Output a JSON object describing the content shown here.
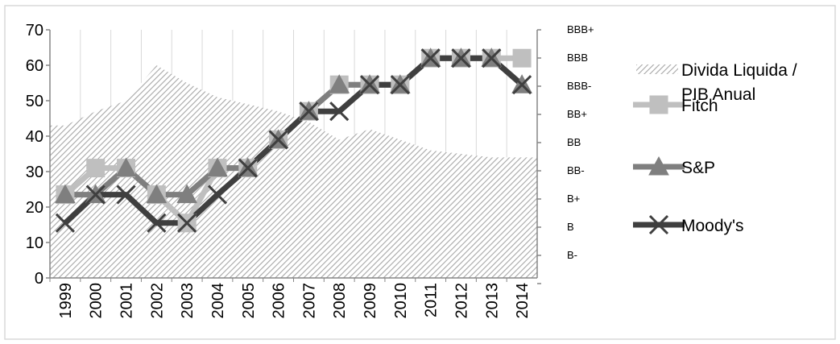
{
  "chart_data": {
    "type": "line",
    "title": "",
    "xlabel": "",
    "ylabel": "",
    "ylim": [
      0,
      70
    ],
    "y_ticks": [
      "0",
      "10",
      "20",
      "30",
      "40",
      "50",
      "60",
      "70"
    ],
    "categories": [
      "1999",
      "2000",
      "2001",
      "2002",
      "2003",
      "2004",
      "2005",
      "2006",
      "2007",
      "2008",
      "2009",
      "2010",
      "2011",
      "2012",
      "2013",
      "2014"
    ],
    "rating_scale_labels": [
      "BBB+",
      "BBB",
      "BBB-",
      "BB+",
      "BB",
      "BB-",
      "B+",
      "B",
      "B-"
    ],
    "grid": "vertical",
    "legend_position": "right",
    "series": [
      {
        "name": "Divida Liquida / PIB Anual",
        "kind": "area",
        "pattern": "diagonal-hatch",
        "color": "#a6a6a6",
        "values": [
          43,
          47,
          50,
          60,
          55,
          51,
          49,
          47,
          44,
          39,
          42,
          39,
          36,
          35,
          34,
          34
        ]
      },
      {
        "name": "Fitch",
        "kind": "line",
        "marker": "square",
        "color": "#bfbfbf",
        "values": [
          23.5,
          31,
          31,
          23.5,
          15.5,
          31,
          31,
          39,
          47,
          54.5,
          54.5,
          54.5,
          62,
          62,
          62,
          62
        ]
      },
      {
        "name": "S&P",
        "kind": "line",
        "marker": "triangle",
        "color": "#7f7f7f",
        "values": [
          23.5,
          23.5,
          31,
          23.5,
          23.5,
          31,
          31,
          39,
          47,
          54.5,
          54.5,
          54.5,
          62,
          62,
          62,
          54.5
        ]
      },
      {
        "name": "Moody's",
        "kind": "line",
        "marker": "x",
        "color": "#3f3f3f",
        "values": [
          15.5,
          23.5,
          23.5,
          15.5,
          15.5,
          23.5,
          31,
          39,
          47,
          47,
          54.5,
          54.5,
          62,
          62,
          62,
          54.5
        ]
      }
    ],
    "legend": [
      {
        "label_lines": [
          "Divida Liquida /",
          "PIB Anual"
        ],
        "symbol": "hatch"
      },
      {
        "label_lines": [
          "Fitch"
        ],
        "symbol": "square"
      },
      {
        "label_lines": [
          "S&P"
        ],
        "symbol": "triangle"
      },
      {
        "label_lines": [
          "Moody's"
        ],
        "symbol": "x"
      }
    ]
  }
}
